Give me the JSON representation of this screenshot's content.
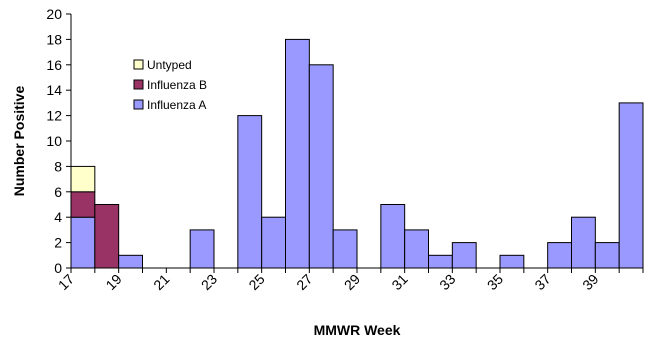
{
  "chart_data": {
    "type": "bar",
    "stacked": true,
    "xlabel": "MMWR Week",
    "ylabel": "Number Positive",
    "ylim": [
      0,
      20
    ],
    "y_ticks": [
      0,
      2,
      4,
      6,
      8,
      10,
      12,
      14,
      16,
      18,
      20
    ],
    "weeks": [
      17,
      18,
      19,
      20,
      21,
      22,
      23,
      24,
      25,
      26,
      27,
      28,
      29,
      30,
      31,
      32,
      33,
      34,
      35,
      36,
      37,
      38,
      39,
      40
    ],
    "x_tick_labels": [
      "17",
      "19",
      "21",
      "23",
      "25",
      "27",
      "29",
      "31",
      "33",
      "35",
      "37",
      "39"
    ],
    "legend_position": "upper-left",
    "series": [
      {
        "name": "Influenza A",
        "color": "#9999ff",
        "values": [
          4,
          0,
          1,
          0,
          0,
          3,
          0,
          12,
          4,
          18,
          16,
          3,
          0,
          5,
          3,
          1,
          2,
          0,
          1,
          0,
          2,
          4,
          2,
          13
        ]
      },
      {
        "name": "Influenza B",
        "color": "#993366",
        "values": [
          2,
          5,
          0,
          0,
          0,
          0,
          0,
          0,
          0,
          0,
          0,
          0,
          0,
          0,
          0,
          0,
          0,
          0,
          0,
          0,
          0,
          0,
          0,
          0
        ]
      },
      {
        "name": "Untyped",
        "color": "#ffffcc",
        "values": [
          2,
          0,
          0,
          0,
          0,
          0,
          0,
          0,
          0,
          0,
          0,
          0,
          0,
          0,
          0,
          0,
          0,
          0,
          0,
          0,
          0,
          0,
          0,
          0
        ]
      }
    ]
  }
}
